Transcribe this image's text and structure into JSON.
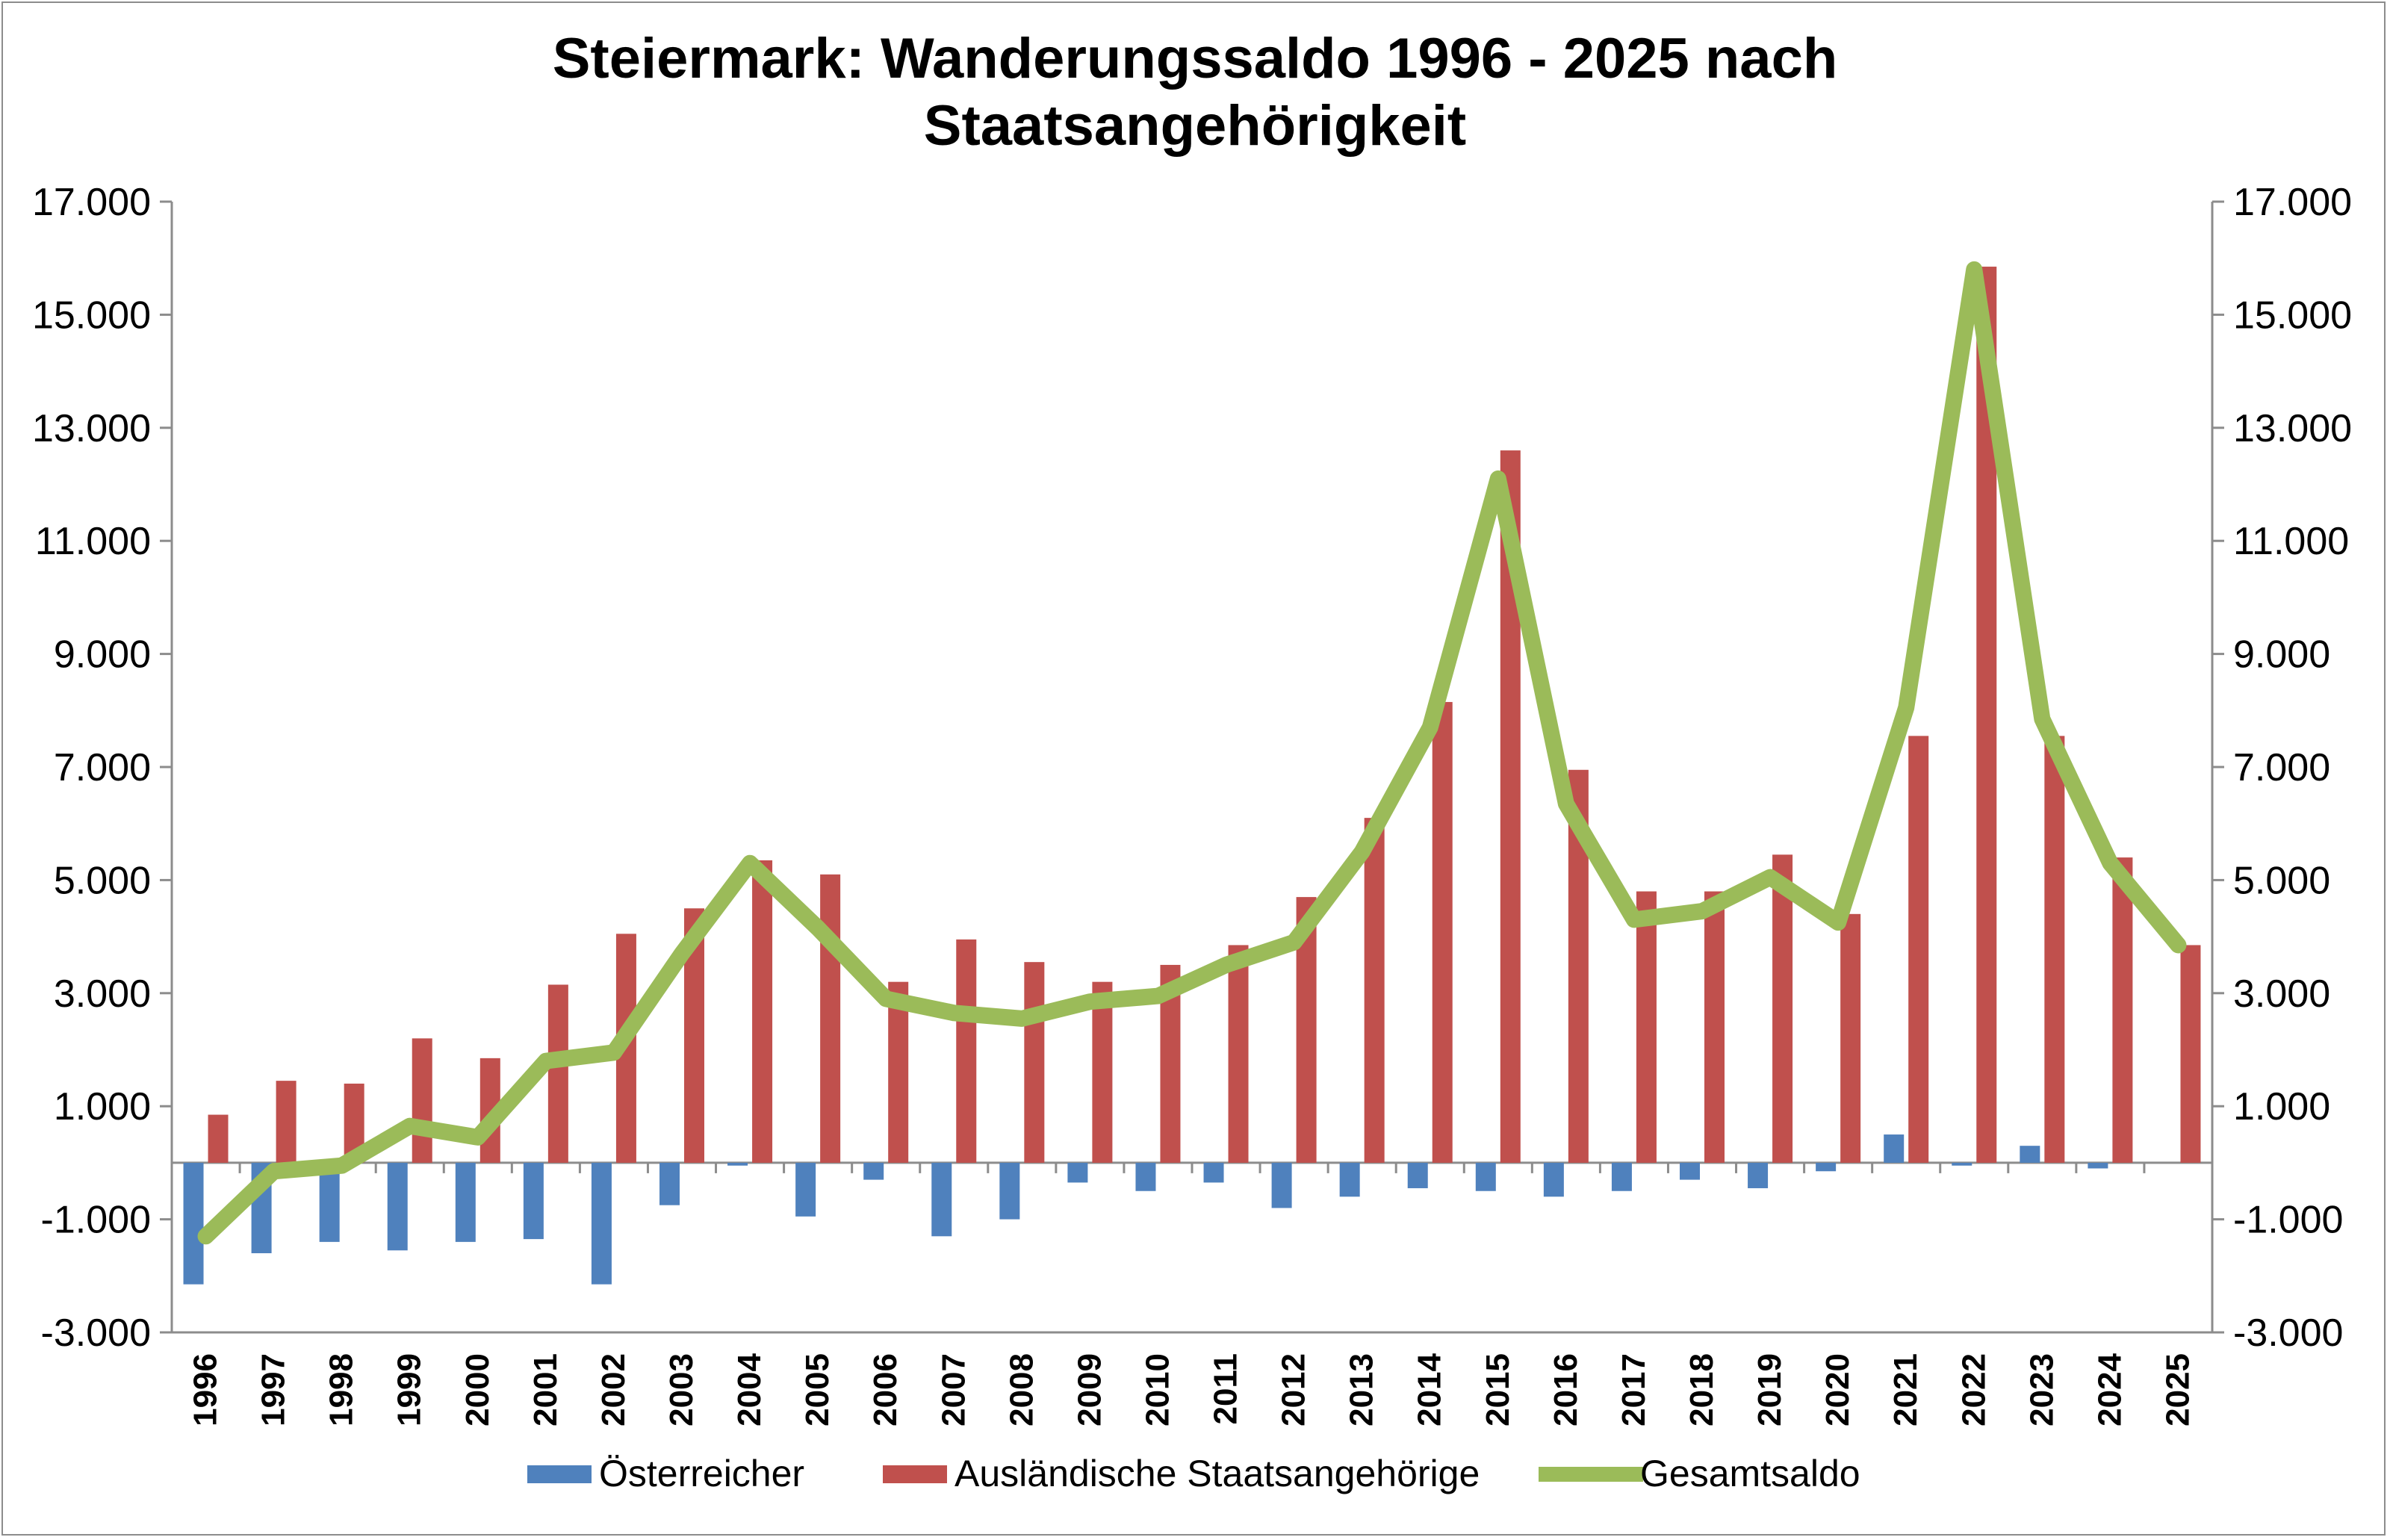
{
  "chart_data": {
    "type": "bar",
    "title_lines": [
      "Steiermark: Wanderungssaldo 1996 - 2025 nach",
      "Staatsangehörigkeit"
    ],
    "categories": [
      "1996",
      "1997",
      "1998",
      "1999",
      "2000",
      "2001",
      "2002",
      "2003",
      "2004",
      "2005",
      "2006",
      "2007",
      "2008",
      "2009",
      "2010",
      "2011",
      "2012",
      "2013",
      "2014",
      "2015",
      "2016",
      "2017",
      "2018",
      "2019",
      "2020",
      "2021",
      "2022",
      "2023",
      "2024",
      "2025"
    ],
    "series": [
      {
        "name": "Österreicher",
        "type": "bar",
        "color": "#4F81BD",
        "values": [
          -2150,
          -1600,
          -1400,
          -1550,
          -1400,
          -1350,
          -2150,
          -750,
          -50,
          -950,
          -300,
          -1300,
          -1000,
          -350,
          -500,
          -350,
          -800,
          -600,
          -450,
          -500,
          -600,
          -500,
          -300,
          -450,
          -150,
          500,
          -50,
          300,
          -100,
          0
        ]
      },
      {
        "name": "Ausländische Staatsangehörige",
        "type": "bar",
        "color": "#C0504D",
        "values": [
          850,
          1450,
          1400,
          2200,
          1850,
          3150,
          4050,
          4500,
          5350,
          5100,
          3200,
          3950,
          3550,
          3200,
          3500,
          3850,
          4700,
          6100,
          8150,
          12600,
          6950,
          4800,
          4800,
          5450,
          4400,
          7550,
          15850,
          7550,
          5400,
          3850
        ]
      },
      {
        "name": "Gesamtsaldo",
        "type": "line",
        "color": "#9BBB59",
        "values": [
          -1300,
          -150,
          -50,
          650,
          450,
          1800,
          1950,
          3700,
          5300,
          4150,
          2900,
          2650,
          2550,
          2850,
          2950,
          3500,
          3900,
          5500,
          7700,
          12100,
          6350,
          4300,
          4450,
          5050,
          4250,
          8050,
          15800,
          7850,
          5300,
          3850
        ]
      }
    ],
    "ylim": [
      -3000,
      17000
    ],
    "yticks": [
      -3000,
      -1000,
      1000,
      3000,
      5000,
      7000,
      9000,
      11000,
      13000,
      15000,
      17000
    ],
    "ytick_labels": [
      "-3.000",
      "-1.000",
      "1.000",
      "3.000",
      "5.000",
      "7.000",
      "9.000",
      "11.000",
      "13.000",
      "15.000",
      "17.000"
    ],
    "secondary_axis_mirrors_primary": true,
    "grid": false,
    "legend_position": "bottom"
  },
  "colors": {
    "axis": "#8c8c8c",
    "austrian": "#4F81BD",
    "foreign": "#C0504D",
    "total": "#9BBB59"
  }
}
